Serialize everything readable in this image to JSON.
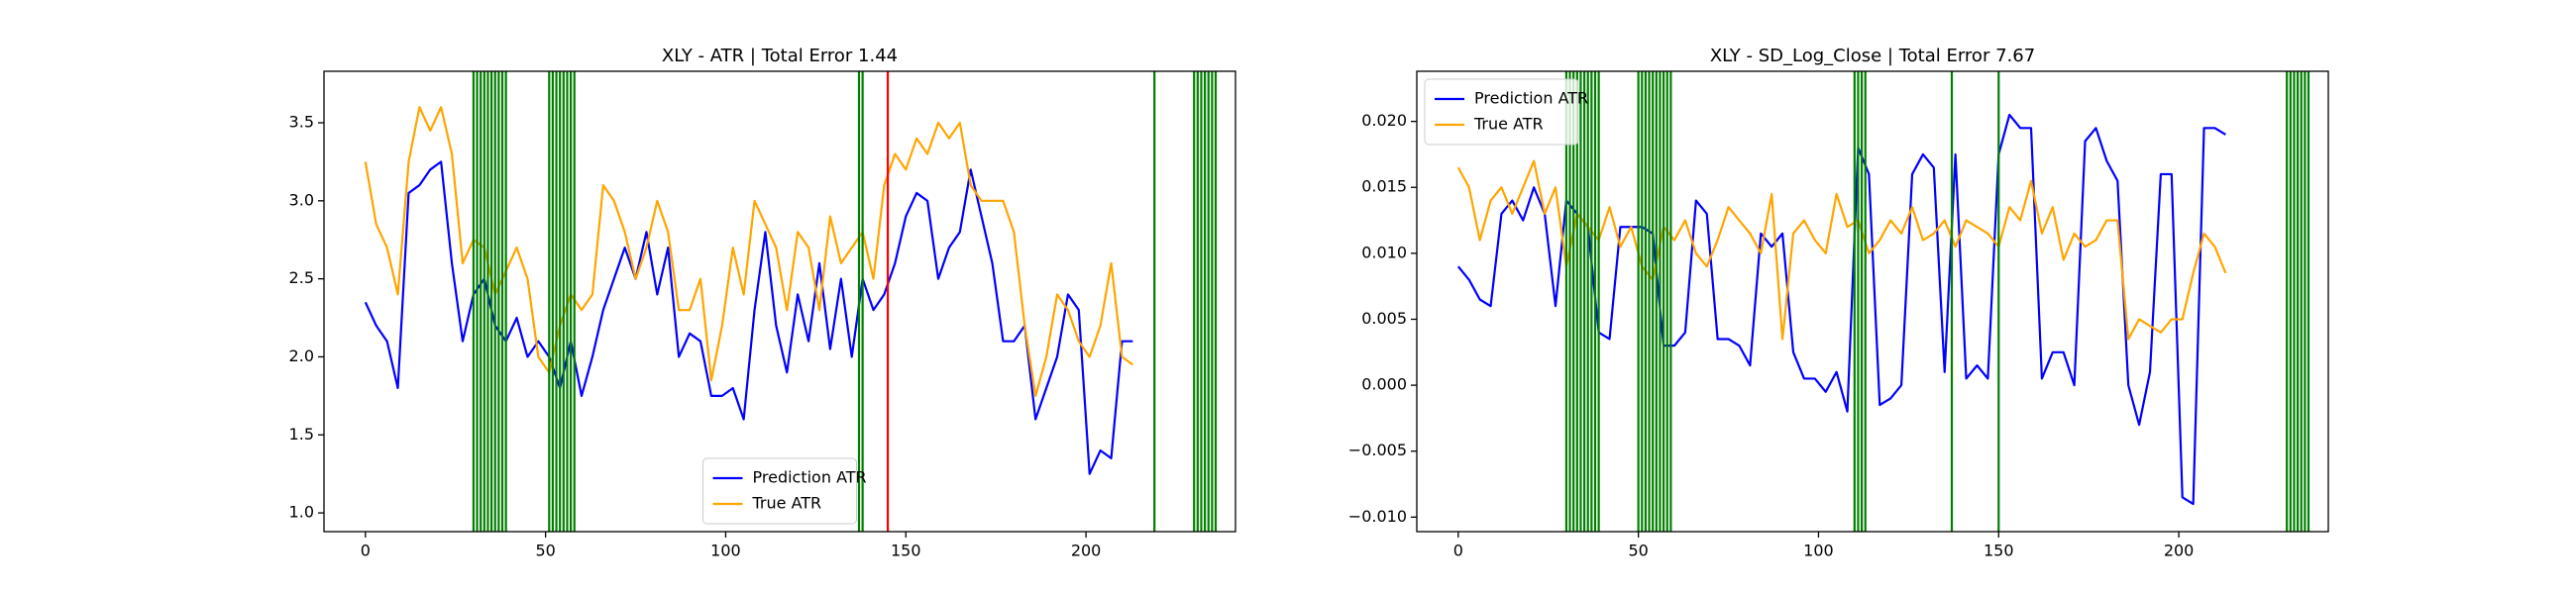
{
  "chart_data": [
    {
      "type": "line",
      "title": "XLY - ATR | Total Error 1.44",
      "x": [
        0,
        3,
        6,
        9,
        12,
        15,
        18,
        21,
        24,
        27,
        30,
        33,
        36,
        39,
        42,
        45,
        48,
        51,
        54,
        57,
        60,
        63,
        66,
        69,
        72,
        75,
        78,
        81,
        84,
        87,
        90,
        93,
        96,
        99,
        102,
        105,
        108,
        111,
        114,
        117,
        120,
        123,
        126,
        129,
        132,
        135,
        138,
        141,
        144,
        147,
        150,
        153,
        156,
        159,
        162,
        165,
        168,
        171,
        174,
        177,
        180,
        183,
        186,
        189,
        192,
        195,
        198,
        201,
        204,
        207,
        210,
        213
      ],
      "series": [
        {
          "name": "Prediction ATR",
          "color": "#0000ff",
          "values": [
            2.35,
            2.2,
            2.1,
            1.8,
            3.05,
            3.1,
            3.2,
            3.25,
            2.6,
            2.1,
            2.4,
            2.5,
            2.2,
            2.1,
            2.25,
            2.0,
            2.1,
            2.0,
            1.8,
            2.1,
            1.75,
            2.0,
            2.3,
            2.5,
            2.7,
            2.5,
            2.8,
            2.4,
            2.7,
            2.0,
            2.15,
            2.1,
            1.75,
            1.75,
            1.8,
            1.6,
            2.3,
            2.8,
            2.2,
            1.9,
            2.4,
            2.1,
            2.6,
            2.05,
            2.5,
            2.0,
            2.5,
            2.3,
            2.4,
            2.6,
            2.9,
            3.05,
            3.0,
            2.5,
            2.7,
            2.8,
            3.2,
            2.9,
            2.6,
            2.1,
            2.1,
            2.2,
            1.6,
            1.8,
            2.0,
            2.4,
            2.3,
            1.25,
            1.4,
            1.35,
            2.1,
            2.1
          ]
        },
        {
          "name": "True ATR",
          "color": "#ffa500",
          "values": [
            3.25,
            2.85,
            2.7,
            2.4,
            3.25,
            3.6,
            3.45,
            3.6,
            3.3,
            2.6,
            2.75,
            2.7,
            2.4,
            2.55,
            2.7,
            2.5,
            2.0,
            1.9,
            2.2,
            2.4,
            2.3,
            2.4,
            3.1,
            3.0,
            2.8,
            2.5,
            2.7,
            3.0,
            2.8,
            2.3,
            2.3,
            2.5,
            1.85,
            2.2,
            2.7,
            2.4,
            3.0,
            2.85,
            2.7,
            2.3,
            2.8,
            2.7,
            2.3,
            2.9,
            2.6,
            2.7,
            2.8,
            2.5,
            3.1,
            3.3,
            3.2,
            3.4,
            3.3,
            3.5,
            3.4,
            3.5,
            3.1,
            3.0,
            3.0,
            3.0,
            2.8,
            2.2,
            1.75,
            2.0,
            2.4,
            2.3,
            2.1,
            2.0,
            2.2,
            2.6,
            2.0,
            1.95
          ]
        }
      ],
      "vlines": [
        {
          "color": "#008000",
          "x": [
            30,
            31,
            32,
            33,
            34,
            35,
            36,
            37,
            38,
            39,
            51,
            52,
            53,
            54,
            55,
            56,
            57,
            58,
            137,
            138,
            219,
            230,
            231,
            232,
            233,
            234,
            235,
            236
          ]
        },
        {
          "color": "#ff0000",
          "x": [
            145
          ]
        }
      ],
      "xlim": [
        -11.5,
        241.5
      ],
      "ylim": [
        0.88,
        3.83
      ],
      "xticks": [
        0,
        50,
        100,
        150,
        200
      ],
      "yticks": [
        {
          "value": 1,
          "label": "1.0"
        },
        1.5,
        {
          "value": 2,
          "label": "2.0"
        },
        2.5,
        {
          "value": 3,
          "label": "3.0"
        },
        3.5
      ],
      "legend": "lower center"
    },
    {
      "type": "line",
      "title": "XLY - SD_Log_Close | Total Error 7.67",
      "x": [
        0,
        3,
        6,
        9,
        12,
        15,
        18,
        21,
        24,
        27,
        30,
        33,
        36,
        39,
        42,
        45,
        48,
        51,
        54,
        57,
        60,
        63,
        66,
        69,
        72,
        75,
        78,
        81,
        84,
        87,
        90,
        93,
        96,
        99,
        102,
        105,
        108,
        111,
        114,
        117,
        120,
        123,
        126,
        129,
        132,
        135,
        138,
        141,
        144,
        147,
        150,
        153,
        156,
        159,
        162,
        165,
        168,
        171,
        174,
        177,
        180,
        183,
        186,
        189,
        192,
        195,
        198,
        201,
        204,
        207,
        210,
        213
      ],
      "series": [
        {
          "name": "Prediction ATR",
          "color": "#0000ff",
          "values": [
            0.009,
            0.008,
            0.0065,
            0.006,
            0.013,
            0.014,
            0.0125,
            0.015,
            0.013,
            0.006,
            0.014,
            0.013,
            0.012,
            0.004,
            0.0035,
            0.012,
            0.012,
            0.012,
            0.0115,
            0.003,
            0.003,
            0.004,
            0.014,
            0.013,
            0.0035,
            0.0035,
            0.003,
            0.0015,
            0.0115,
            0.0105,
            0.0115,
            0.0025,
            0.0005,
            0.0005,
            -0.0005,
            0.001,
            -0.002,
            0.018,
            0.016,
            -0.0015,
            -0.001,
            0,
            0.016,
            0.0175,
            0.0165,
            0.001,
            0.0175,
            0.0005,
            0.0015,
            0.0005,
            0.0175,
            0.0205,
            0.0195,
            0.0195,
            0.0005,
            0.0025,
            0.0025,
            0,
            0.0185,
            0.0195,
            0.017,
            0.0155,
            0,
            -0.003,
            0.001,
            0.016,
            0.016,
            -0.0085,
            -0.009,
            0.0195,
            0.0195,
            0.019
          ]
        },
        {
          "name": "True ATR",
          "color": "#ffa500",
          "values": [
            0.0165,
            0.015,
            0.011,
            0.014,
            0.015,
            0.013,
            0.015,
            0.017,
            0.013,
            0.015,
            0.009,
            0.013,
            0.012,
            0.011,
            0.0135,
            0.0105,
            0.012,
            0.009,
            0.008,
            0.012,
            0.011,
            0.0125,
            0.01,
            0.009,
            0.011,
            0.0135,
            0.0125,
            0.0115,
            0.01,
            0.0145,
            0.0035,
            0.0115,
            0.0125,
            0.011,
            0.01,
            0.0145,
            0.012,
            0.0125,
            0.01,
            0.011,
            0.0125,
            0.0115,
            0.0135,
            0.011,
            0.0115,
            0.0125,
            0.0105,
            0.0125,
            0.012,
            0.0115,
            0.0105,
            0.0135,
            0.0125,
            0.0155,
            0.0115,
            0.0135,
            0.0095,
            0.0115,
            0.0105,
            0.011,
            0.0125,
            0.0125,
            0.0035,
            0.005,
            0.0045,
            0.004,
            0.005,
            0.005,
            0.0085,
            0.0115,
            0.0105,
            0.0085
          ]
        }
      ],
      "vlines": [
        {
          "color": "#008000",
          "x": [
            30,
            31,
            32,
            33,
            34,
            35,
            36,
            37,
            38,
            39,
            50,
            51,
            52,
            53,
            54,
            55,
            56,
            57,
            58,
            59,
            110,
            111,
            112,
            113,
            137,
            150,
            230,
            231,
            232,
            233,
            234,
            235,
            236
          ]
        }
      ],
      "xlim": [
        -11.5,
        241.5
      ],
      "ylim": [
        -0.0111,
        0.0238
      ],
      "xticks": [
        0,
        50,
        100,
        150,
        200
      ],
      "yticks": [
        {
          "value": -0.01,
          "label": "−0.010"
        },
        {
          "value": -0.005,
          "label": "−0.005"
        },
        {
          "value": 0,
          "label": "0.000"
        },
        {
          "value": 0.005,
          "label": "0.005"
        },
        {
          "value": 0.01,
          "label": "0.010"
        },
        {
          "value": 0.015,
          "label": "0.015"
        },
        {
          "value": 0.02,
          "label": "0.020"
        }
      ],
      "legend": "upper left"
    }
  ]
}
